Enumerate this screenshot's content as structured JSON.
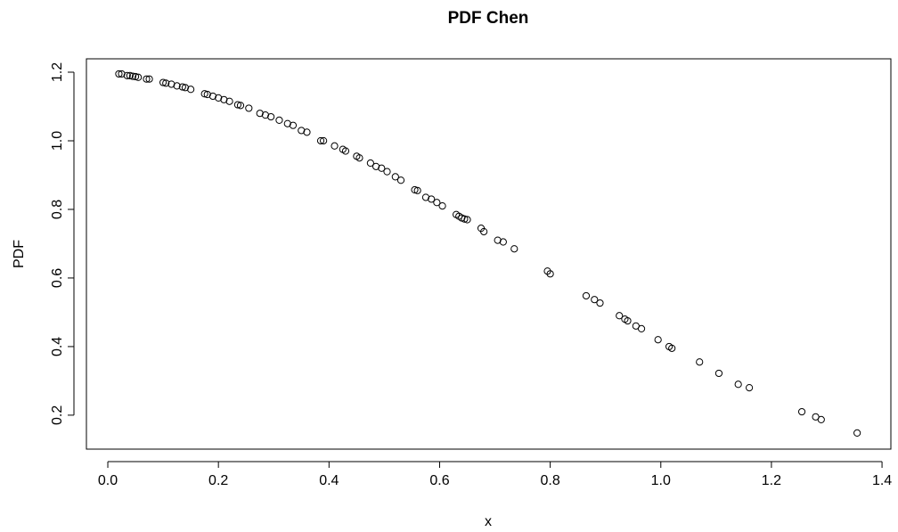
{
  "chart_data": {
    "type": "scatter",
    "title": "PDF Chen",
    "x_label": "x",
    "y_label": "PDF",
    "series": [
      {
        "name": "PDF",
        "color": "#000000",
        "x": [
          0.02,
          0.025,
          0.035,
          0.04,
          0.045,
          0.05,
          0.055,
          0.07,
          0.075,
          0.1,
          0.105,
          0.115,
          0.125,
          0.135,
          0.14,
          0.15,
          0.175,
          0.18,
          0.19,
          0.2,
          0.21,
          0.22,
          0.235,
          0.24,
          0.255,
          0.275,
          0.285,
          0.295,
          0.31,
          0.325,
          0.335,
          0.35,
          0.36,
          0.385,
          0.39,
          0.41,
          0.425,
          0.43,
          0.45,
          0.455,
          0.475,
          0.485,
          0.495,
          0.505,
          0.52,
          0.53,
          0.555,
          0.56,
          0.575,
          0.585,
          0.595,
          0.605,
          0.63,
          0.635,
          0.64,
          0.645,
          0.65,
          0.675,
          0.68,
          0.705,
          0.715,
          0.735,
          0.795,
          0.8,
          0.865,
          0.88,
          0.89,
          0.925,
          0.935,
          0.94,
          0.955,
          0.965,
          0.995,
          1.015,
          1.02,
          1.07,
          1.105,
          1.14,
          1.16,
          1.255,
          1.28,
          1.29,
          1.355
        ],
        "values": [
          1.195,
          1.195,
          1.19,
          1.19,
          1.188,
          1.187,
          1.185,
          1.18,
          1.18,
          1.17,
          1.168,
          1.165,
          1.16,
          1.157,
          1.155,
          1.15,
          1.137,
          1.135,
          1.13,
          1.125,
          1.12,
          1.115,
          1.105,
          1.103,
          1.095,
          1.08,
          1.075,
          1.07,
          1.06,
          1.05,
          1.045,
          1.03,
          1.025,
          1.0,
          1.0,
          0.985,
          0.975,
          0.97,
          0.955,
          0.95,
          0.935,
          0.925,
          0.92,
          0.91,
          0.895,
          0.885,
          0.857,
          0.855,
          0.835,
          0.83,
          0.82,
          0.81,
          0.785,
          0.78,
          0.775,
          0.772,
          0.77,
          0.745,
          0.735,
          0.71,
          0.705,
          0.685,
          0.62,
          0.612,
          0.548,
          0.537,
          0.527,
          0.49,
          0.48,
          0.475,
          0.46,
          0.452,
          0.42,
          0.4,
          0.395,
          0.355,
          0.322,
          0.29,
          0.28,
          0.21,
          0.195,
          0.187,
          0.148
        ]
      }
    ],
    "xlim": [
      -0.0387,
      1.416
    ],
    "ylim": [
      0.101,
      1.239
    ],
    "xticks": [
      {
        "value": 0,
        "label": "0.0"
      },
      0.2,
      0.4,
      0.6,
      0.8,
      {
        "value": 1,
        "label": "1.0"
      },
      1.2,
      1.4
    ],
    "yticks": [
      0.2,
      0.4,
      0.6,
      0.8,
      {
        "value": 1,
        "label": "1.0"
      },
      1.2
    ]
  }
}
